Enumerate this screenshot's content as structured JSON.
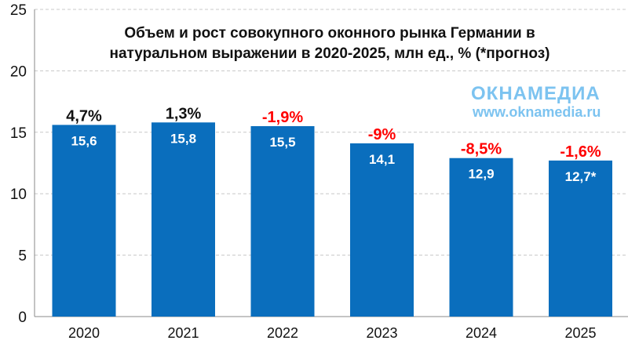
{
  "chart_data": {
    "type": "bar",
    "title_lines": [
      "Объем и рост совокупного оконного рынка Германии в",
      "натуральном выражении в 2020-2025, млн ед., % (*прогноз)"
    ],
    "categories": [
      "2020",
      "2021",
      "2022",
      "2023",
      "2024",
      "2025"
    ],
    "values": [
      15.6,
      15.8,
      15.5,
      14.1,
      12.9,
      12.7
    ],
    "value_labels": [
      "15,6",
      "15,8",
      "15,5",
      "14,1",
      "12,9",
      "12,7*"
    ],
    "growth_labels": [
      "4,7%",
      "1,3%",
      "-1,9%",
      "-9%",
      "-8,5%",
      "-1,6%"
    ],
    "growth_colors": [
      "#111111",
      "#111111",
      "#ff0000",
      "#ff0000",
      "#ff0000",
      "#ff0000"
    ],
    "ylim": [
      0,
      25
    ],
    "yticks": [
      "0",
      "5",
      "10",
      "15",
      "20",
      "25"
    ],
    "grid": true,
    "bar_color": "#0a6ebd"
  },
  "watermark": {
    "logo": "ОКНАМЕДИА",
    "url": "www.oknamedia.ru"
  }
}
